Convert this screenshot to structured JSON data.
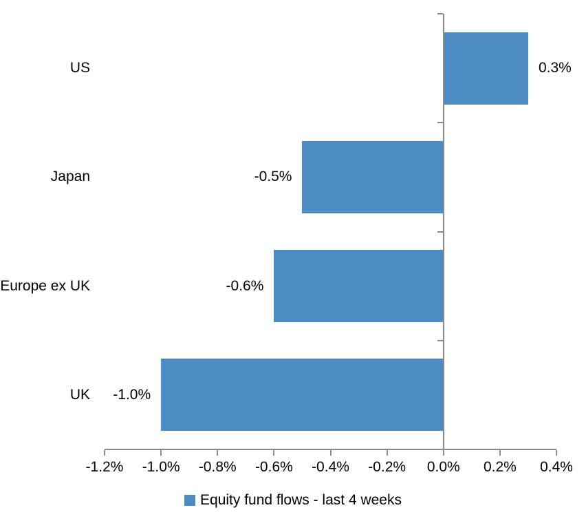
{
  "chart_data": {
    "type": "bar",
    "orientation": "horizontal",
    "title": "",
    "xlabel": "",
    "ylabel": "",
    "categories": [
      "US",
      "Japan",
      "Europe ex UK",
      "UK"
    ],
    "series": [
      {
        "name": "Equity fund flows - last 4 weeks",
        "values": [
          0.3,
          -0.5,
          -0.6,
          -1.0
        ],
        "data_labels": [
          "0.3%",
          "-0.5%",
          "-0.6%",
          "-1.0%"
        ]
      }
    ],
    "series_name": "Equity fund flows - last 4 weeks",
    "x_ticks": [
      {
        "value": -1.2,
        "label": "-1.2%"
      },
      {
        "value": -1.0,
        "label": "-1.0%"
      },
      {
        "value": -0.8,
        "label": "-0.8%"
      },
      {
        "value": -0.6,
        "label": "-0.6%"
      },
      {
        "value": -0.4,
        "label": "-0.4%"
      },
      {
        "value": -0.2,
        "label": "-0.2%"
      },
      {
        "value": 0.0,
        "label": "0.0%"
      },
      {
        "value": 0.2,
        "label": "0.2%"
      },
      {
        "value": 0.4,
        "label": "0.4%"
      }
    ],
    "xlim": [
      -1.2,
      0.4
    ],
    "grid": false,
    "legend_position": "bottom",
    "colors": {
      "bar": "#4d8bc3",
      "axis": "#8a8a8a",
      "text": "#000000",
      "background": "#ffffff"
    }
  }
}
